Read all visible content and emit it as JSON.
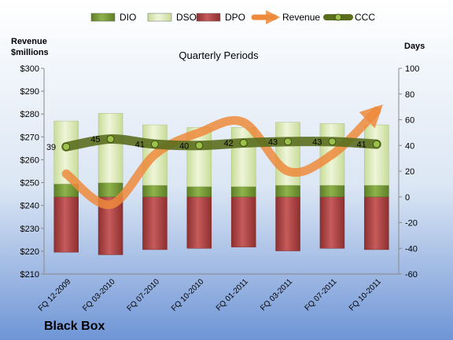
{
  "chart_data": {
    "type": "bar",
    "title": "Quarterly Periods",
    "company": "Black Box",
    "left_axis_label": [
      "Revenue",
      "$millions"
    ],
    "right_axis_label": "Days",
    "left_ylim": [
      210,
      300
    ],
    "left_ticks": [
      "$210",
      "$220",
      "$230",
      "$240",
      "$250",
      "$260",
      "$270",
      "$280",
      "$290",
      "$300"
    ],
    "right_ylim": [
      -60,
      100
    ],
    "right_ticks": [
      "-60",
      "-40",
      "-20",
      "0",
      "20",
      "40",
      "60",
      "80",
      "100"
    ],
    "categories": [
      "FQ 12-2009",
      "FQ 03-2010",
      "FQ 07-2010",
      "FQ 10-2010",
      "FQ 01-2011",
      "FQ 03-2011",
      "FQ 07-2011",
      "FQ 10-2011"
    ],
    "legend": [
      "DIO",
      "DSO",
      "DPO",
      "Revenue",
      "CCC"
    ],
    "series": [
      {
        "name": "DIO",
        "axis": "days",
        "color": "#7a9c3c",
        "values": [
          10,
          11,
          9,
          8,
          8,
          9,
          9,
          9
        ]
      },
      {
        "name": "DSO",
        "axis": "days",
        "color": "#d9e8b4",
        "values": [
          49,
          54,
          47,
          46,
          46,
          49,
          48,
          47
        ]
      },
      {
        "name": "DPO",
        "axis": "days",
        "color": "#b84a4a",
        "values": [
          -43,
          -45,
          -41,
          -40,
          -39,
          -42,
          -40,
          -41
        ]
      },
      {
        "name": "Revenue",
        "axis": "days",
        "color": "#ed8a3c",
        "values": [
          18,
          -6,
          33,
          50,
          58,
          20,
          33,
          67
        ]
      },
      {
        "name": "CCC",
        "axis": "days",
        "color": "#5a6e1e",
        "values": [
          39,
          45,
          41,
          40,
          42,
          43,
          43,
          41
        ]
      }
    ],
    "ccc_labels": [
      "39",
      "45",
      "41",
      "40",
      "42",
      "43",
      "43",
      "41"
    ],
    "legend_position": "top",
    "grid": false
  }
}
